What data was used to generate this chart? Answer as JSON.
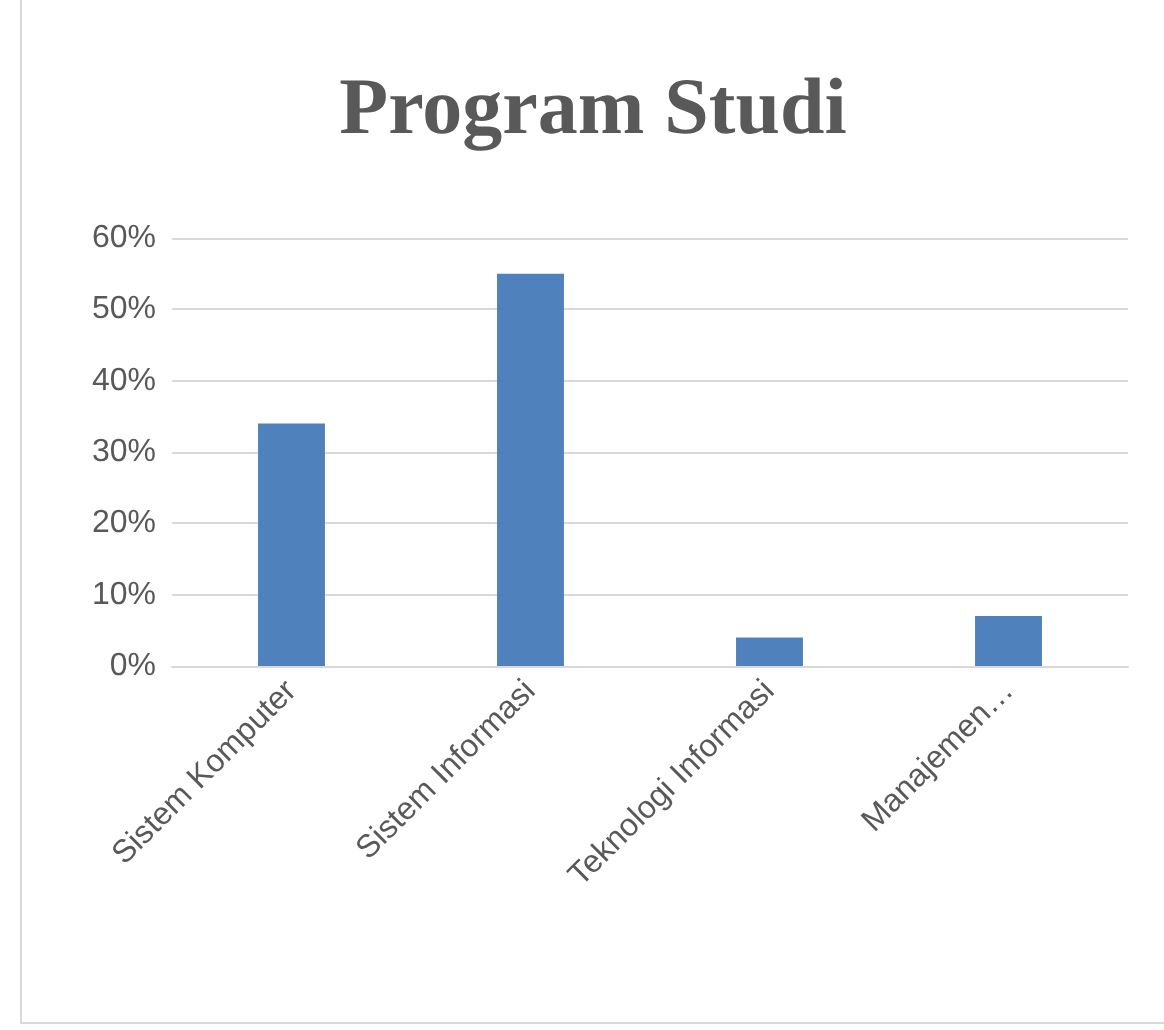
{
  "chart_data": {
    "type": "bar",
    "title": "Program Studi",
    "categories": [
      "Sistem Komputer",
      "Sistem Informasi",
      "Teknologi Informasi",
      "Manajemen…"
    ],
    "values": [
      34,
      55,
      4,
      7
    ],
    "color": "#4f81bd",
    "ylim": [
      0,
      60
    ],
    "yticks": [
      {
        "value": 0,
        "label": "0%"
      },
      {
        "value": 10,
        "label": "10%"
      },
      {
        "value": 20,
        "label": "20%"
      },
      {
        "value": 30,
        "label": "30%"
      },
      {
        "value": 40,
        "label": "40%"
      },
      {
        "value": 50,
        "label": "50%"
      },
      {
        "value": 60,
        "label": "60%"
      }
    ],
    "grid": "y"
  }
}
